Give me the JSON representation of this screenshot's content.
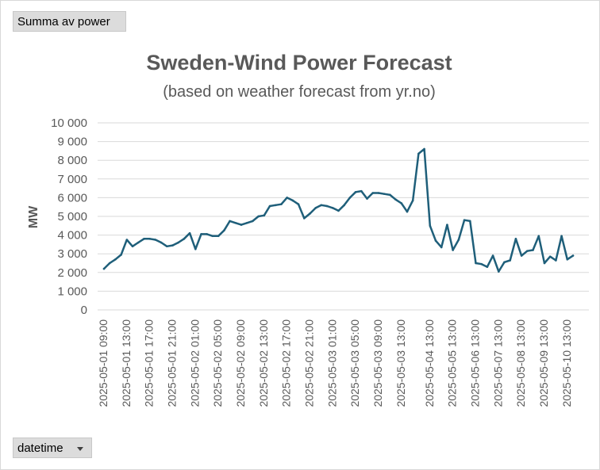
{
  "values_field": {
    "label": "Summa av power"
  },
  "axis_field": {
    "label": "datetime"
  },
  "chart_data": {
    "type": "line",
    "title": "Sweden-Wind Power Forecast",
    "subtitle": "(based on weather forecast from yr.no)",
    "ylabel": "MW",
    "xlabel": "",
    "ylim": [
      0,
      10000
    ],
    "yticks": [
      "0",
      "1 000",
      "2 000",
      "3 000",
      "4 000",
      "5 000",
      "6 000",
      "7 000",
      "8 000",
      "9 000",
      "10 000"
    ],
    "grid": true,
    "line_color": "#1f5f7a",
    "xtick_labels": [
      "2025-05-01 09:00",
      "2025-05-01 13:00",
      "2025-05-01 17:00",
      "2025-05-01 21:00",
      "2025-05-02 01:00",
      "2025-05-02 05:00",
      "2025-05-02 09:00",
      "2025-05-02 13:00",
      "2025-05-02 17:00",
      "2025-05-02 21:00",
      "2025-05-03 01:00",
      "2025-05-03 05:00",
      "2025-05-03 09:00",
      "2025-05-03 13:00",
      "2025-05-04 13:00",
      "2025-05-05 13:00",
      "2025-05-06 13:00",
      "2025-05-07 13:00",
      "2025-05-08 13:00",
      "2025-05-09 13:00",
      "2025-05-10 13:00"
    ],
    "series": [
      {
        "values": [
          2200,
          2500,
          2700,
          2950,
          3750,
          3400,
          3600,
          3800,
          3800,
          3750,
          3600,
          3400,
          3450,
          3600,
          3800,
          4100,
          3250,
          4050,
          4050,
          3950,
          3950,
          4250,
          4750,
          4650,
          4550,
          4650,
          4750,
          5000,
          5050,
          5550,
          5600,
          5650,
          6000,
          5850,
          5650,
          4900,
          5150,
          5450,
          5600,
          5550,
          5450,
          5300,
          5600,
          6000,
          6300,
          6350,
          5950,
          6250,
          6250,
          6200,
          6150,
          5900,
          5700,
          5250,
          5850,
          8350,
          8600,
          4500,
          3700,
          3350,
          4550,
          3200,
          3750,
          4800,
          4750,
          2500,
          2450,
          2300,
          2900,
          2050,
          2550,
          2650,
          3800,
          2900,
          3150,
          3200,
          3950,
          2500,
          2850,
          2650,
          3950,
          2700,
          2900
        ]
      }
    ]
  }
}
